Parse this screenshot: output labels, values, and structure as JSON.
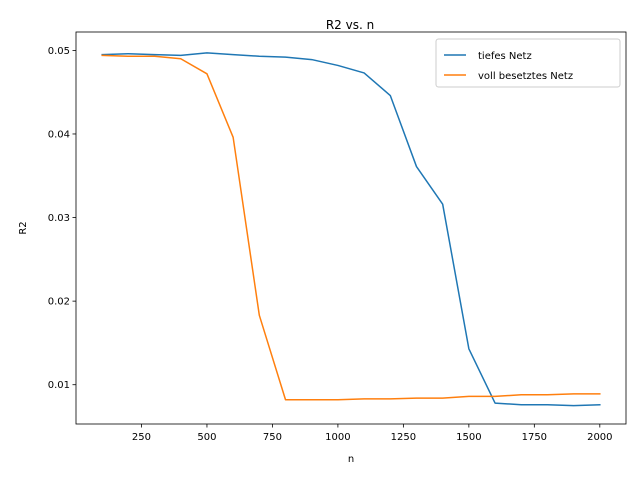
{
  "chart_data": {
    "type": "line",
    "title": "R2 vs. n",
    "xlabel": "n",
    "ylabel": "R2",
    "xlim": [
      0,
      2100
    ],
    "ylim": [
      0.0053,
      0.0522
    ],
    "x_ticks": [
      250,
      500,
      750,
      1000,
      1250,
      1500,
      1750,
      2000
    ],
    "x_tick_labels": [
      "250",
      "500",
      "750",
      "1000",
      "1250",
      "1500",
      "1750",
      "2000"
    ],
    "y_ticks": [
      0.01,
      0.02,
      0.03,
      0.04,
      0.05
    ],
    "y_tick_labels": [
      "0.01",
      "0.02",
      "0.03",
      "0.04",
      "0.05"
    ],
    "grid": false,
    "legend_position": "top-right",
    "x": [
      100,
      200,
      300,
      400,
      500,
      600,
      700,
      800,
      900,
      1000,
      1100,
      1200,
      1300,
      1400,
      1500,
      1600,
      1700,
      1800,
      1900,
      2000
    ],
    "series": [
      {
        "name": "tiefes Netz",
        "color": "#1f77b4",
        "values": [
          0.0495,
          0.0496,
          0.0495,
          0.0494,
          0.0497,
          0.0495,
          0.0493,
          0.0492,
          0.0489,
          0.0482,
          0.0473,
          0.0446,
          0.0361,
          0.0316,
          0.0143,
          0.0078,
          0.0076,
          0.0076,
          0.0075,
          0.0076
        ]
      },
      {
        "name": "voll besetztes Netz",
        "color": "#ff7f0e",
        "values": [
          0.0494,
          0.0493,
          0.0493,
          0.049,
          0.0472,
          0.0396,
          0.0183,
          0.0082,
          0.0082,
          0.0082,
          0.0083,
          0.0083,
          0.0084,
          0.0084,
          0.0086,
          0.0086,
          0.0088,
          0.0088,
          0.0089,
          0.0089
        ]
      }
    ]
  }
}
